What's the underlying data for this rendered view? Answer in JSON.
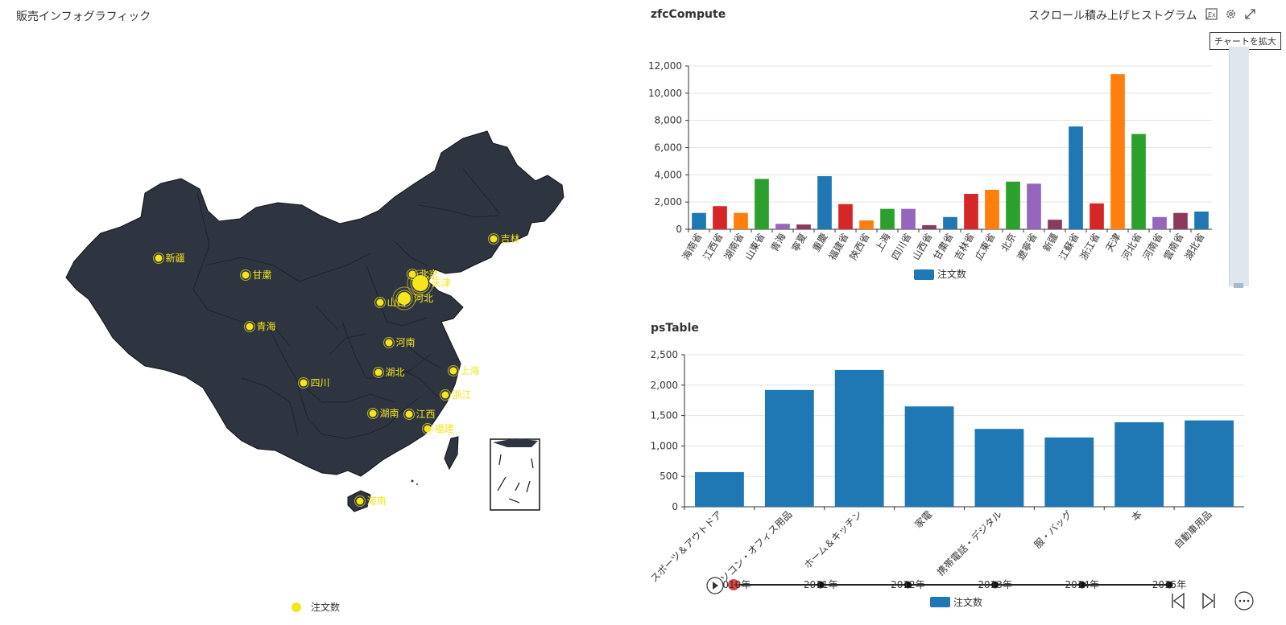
{
  "map_panel": {
    "title": "販売インフォグラフィック",
    "legend": "注文数",
    "city_labels": [
      "新疆",
      "甘粛",
      "青海",
      "北京",
      "天津",
      "河北",
      "山西",
      "吉林",
      "河南",
      "湖北",
      "上海",
      "浙江",
      "四川",
      "湖南",
      "江西",
      "福建",
      "海南"
    ]
  },
  "bar_panel": {
    "title": "zfcCompute",
    "chart_type_select": "スクロール積み上げヒストグラム",
    "tooltip": "チャートを拡大"
  },
  "colors": {
    "map_fill": "#2e3541",
    "marker": "#f5e51c",
    "blue": "#1f77b4",
    "red": "#d62728",
    "orange": "#ff7f0e",
    "green": "#2ca02c",
    "purple": "#9467bd",
    "plum": "#8c3a5c"
  },
  "chart_data": [
    {
      "type": "map",
      "title": "販売インフォグラフィック",
      "legend": [
        "注文数"
      ],
      "points": [
        "新疆",
        "甘粛",
        "青海",
        "北京",
        "天津",
        "河北",
        "山西",
        "吉林",
        "河南",
        "湖北",
        "上海",
        "浙江",
        "四川",
        "湖南",
        "江西",
        "福建",
        "海南"
      ]
    },
    {
      "type": "bar",
      "title": "zfcCompute",
      "categories": [
        "海南省",
        "江西省",
        "湖南省",
        "山東省",
        "青海",
        "寧夏",
        "重慶",
        "福建省",
        "陝西省",
        "上海",
        "四川省",
        "山西省",
        "甘粛省",
        "吉林省",
        "広東省",
        "北京",
        "遼寧省",
        "新疆",
        "江蘇省",
        "浙江省",
        "天津",
        "河北省",
        "河南省",
        "雲南省",
        "湖北省"
      ],
      "values": [
        1200,
        1700,
        1200,
        3700,
        400,
        350,
        3900,
        1850,
        650,
        1500,
        1500,
        300,
        900,
        2600,
        2900,
        3500,
        3350,
        700,
        7550,
        1900,
        11400,
        7000,
        900,
        1200,
        1300
      ],
      "colors": [
        "blue",
        "red",
        "orange",
        "green",
        "purple",
        "plum",
        "blue",
        "red",
        "orange",
        "green",
        "purple",
        "plum",
        "blue",
        "red",
        "orange",
        "green",
        "purple",
        "plum",
        "blue",
        "red",
        "orange",
        "green",
        "purple",
        "plum",
        "blue"
      ],
      "legend": [
        "注文数"
      ],
      "ylim": [
        0,
        12000
      ],
      "yticks": [
        "0",
        "2,000",
        "4,000",
        "6,000",
        "8,000",
        "10,000",
        "12,000"
      ],
      "grid": true
    },
    {
      "type": "bar",
      "title": "psTable",
      "categories": [
        "スポーツ＆アウトドア",
        "パソコン・オフィス用品",
        "ホーム＆キッチン",
        "家電",
        "携帯電話・デジタル",
        "服・バッグ",
        "本",
        "自動車用品"
      ],
      "values": [
        570,
        1920,
        2250,
        1650,
        1280,
        1140,
        1390,
        1420
      ],
      "legend": [
        "注文数"
      ],
      "ylim": [
        0,
        2500
      ],
      "yticks": [
        "0",
        "500",
        "1,000",
        "1,500",
        "2,000",
        "2,500"
      ],
      "grid": true,
      "timeline": [
        "2010年",
        "2011年",
        "2012年",
        "2013年",
        "2014年",
        "2015年"
      ]
    }
  ]
}
